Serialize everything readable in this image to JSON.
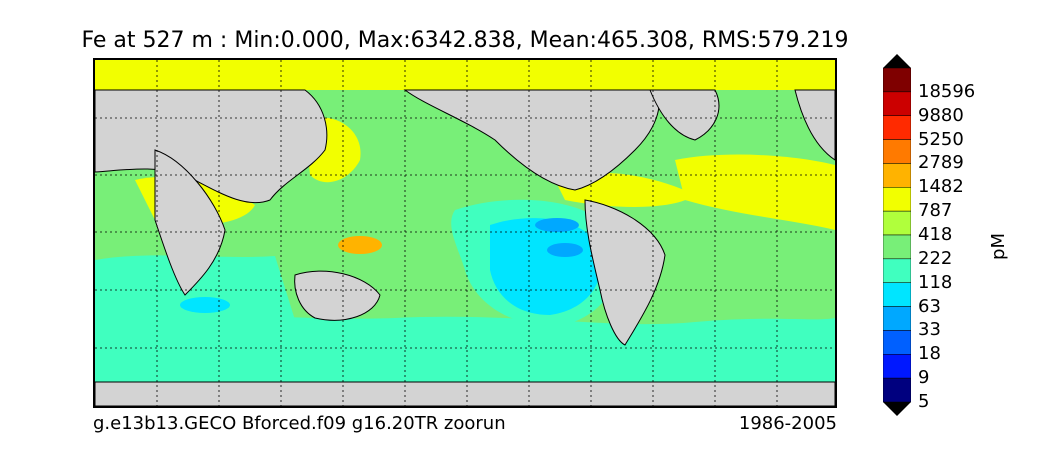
{
  "title": "Fe at 527 m : Min:0.000, Max:6342.838, Mean:465.308, RMS:579.219",
  "footer_left": "g.e13b13.GECO Bforced.f09 g16.20TR zoorun",
  "footer_right": "1986-2005",
  "colorbar": {
    "unit": "pM",
    "labels": [
      "18596",
      "9880",
      "5250",
      "2789",
      "1482",
      "787",
      "418",
      "222",
      "118",
      "63",
      "33",
      "18",
      "9",
      "5"
    ],
    "colors_top_to_bottom": [
      "#7f0000",
      "#cc0000",
      "#ff2a00",
      "#ff7a00",
      "#ffb300",
      "#f2ff00",
      "#b0ff3c",
      "#78ef78",
      "#40ffbf",
      "#00e5ff",
      "#00a8ff",
      "#0060ff",
      "#0018ff",
      "#00007f"
    ],
    "overflow_top_color": "#000000",
    "overflow_bottom_color": "#000000"
  },
  "map": {
    "land_color": "#d3d3d3",
    "ocean_base_color": "#78ef78",
    "gridlines": "dashed"
  }
}
